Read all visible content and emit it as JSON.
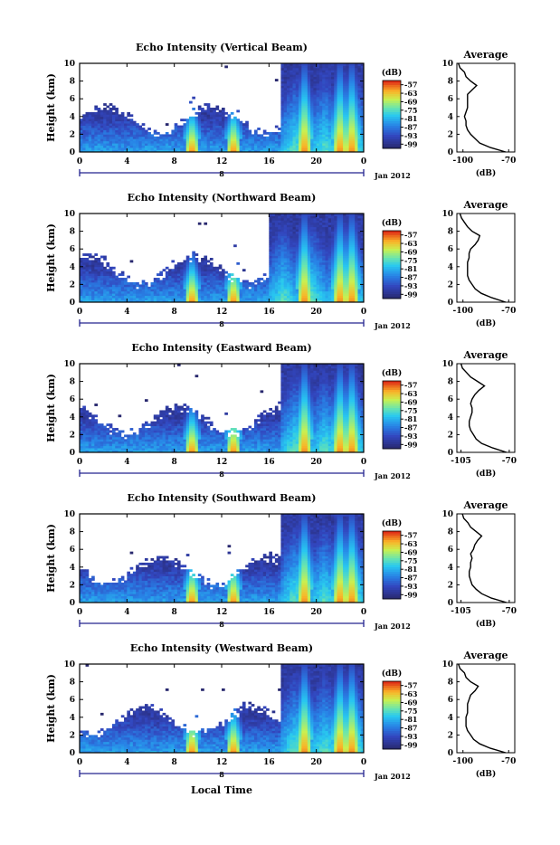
{
  "figure": {
    "xlabel": "Local Time",
    "date_label": "Jan 2012",
    "day_label": "8",
    "colorbar_unit": "(dB)",
    "avg_title": "Average",
    "avg_xlabel": "(dB)",
    "ylabel": "Height (km)"
  },
  "chart_data": [
    {
      "type": "heatmap",
      "title": "Echo Intensity (Vertical Beam)",
      "xlabel": "Local Time",
      "ylabel": "Height (km)",
      "x_ticks": [
        "0",
        "4",
        "8",
        "12",
        "16",
        "20",
        "0"
      ],
      "x_range": [
        0,
        24
      ],
      "y_ticks": [
        "0",
        "2",
        "4",
        "6",
        "8",
        "10"
      ],
      "y_range": [
        0,
        10
      ],
      "colorbar": {
        "label": "(dB)",
        "ticks": [
          "-57",
          "-63",
          "-69",
          "-75",
          "-81",
          "-87",
          "-93",
          "-99"
        ],
        "range": [
          -102,
          -54
        ]
      },
      "convective_plumes_hours": [
        9.5,
        13,
        19,
        22,
        23
      ],
      "deep_convection_start_hour": 17,
      "profile": {
        "title": "Average",
        "xlabel": "(dB)",
        "x_ticks": [
          "-100",
          "-70"
        ],
        "x_range": [
          -104,
          -66
        ],
        "heights": [
          0,
          0.5,
          1,
          1.5,
          2,
          2.5,
          3,
          3.5,
          4,
          4.5,
          5,
          5.5,
          6,
          6.5,
          7,
          7.5,
          8,
          8.5,
          9,
          9.5,
          10
        ],
        "values": [
          -72,
          -82,
          -89,
          -92,
          -95,
          -97,
          -98,
          -98,
          -99,
          -98,
          -97,
          -97,
          -97,
          -97,
          -94,
          -91,
          -95,
          -98,
          -99,
          -102,
          -103
        ]
      }
    },
    {
      "type": "heatmap",
      "title": "Echo Intensity (Northward Beam)",
      "xlabel": "Local Time",
      "ylabel": "Height (km)",
      "x_ticks": [
        "0",
        "4",
        "8",
        "12",
        "16",
        "20",
        "0"
      ],
      "x_range": [
        0,
        24
      ],
      "y_ticks": [
        "0",
        "2",
        "4",
        "6",
        "8",
        "10"
      ],
      "y_range": [
        0,
        10
      ],
      "colorbar": {
        "label": "(dB)",
        "ticks": [
          "-57",
          "-63",
          "-69",
          "-75",
          "-81",
          "-87",
          "-93",
          "-99"
        ],
        "range": [
          -102,
          -54
        ]
      },
      "convective_plumes_hours": [
        9.5,
        13,
        19,
        22,
        23
      ],
      "deep_convection_start_hour": 16,
      "profile": {
        "title": "Average",
        "xlabel": "(dB)",
        "x_ticks": [
          "-100",
          "-70"
        ],
        "x_range": [
          -104,
          -66
        ],
        "heights": [
          0,
          0.5,
          1,
          1.5,
          2,
          2.5,
          3,
          3.5,
          4,
          4.5,
          5,
          5.5,
          6,
          6.5,
          7,
          7.5,
          8,
          8.5,
          9,
          9.5,
          10
        ],
        "values": [
          -72,
          -81,
          -88,
          -92,
          -94,
          -96,
          -97,
          -97,
          -97,
          -97,
          -96,
          -96,
          -95,
          -92,
          -90,
          -89,
          -94,
          -97,
          -99,
          -101,
          -102
        ]
      }
    },
    {
      "type": "heatmap",
      "title": "Echo Intensity (Eastward Beam)",
      "xlabel": "Local Time",
      "ylabel": "Height (km)",
      "x_ticks": [
        "0",
        "4",
        "8",
        "12",
        "16",
        "20",
        "0"
      ],
      "x_range": [
        0,
        24
      ],
      "y_ticks": [
        "0",
        "2",
        "4",
        "6",
        "8",
        "10"
      ],
      "y_range": [
        0,
        10
      ],
      "colorbar": {
        "label": "(dB)",
        "ticks": [
          "-57",
          "-63",
          "-69",
          "-75",
          "-81",
          "-87",
          "-93",
          "-99"
        ],
        "range": [
          -102,
          -54
        ]
      },
      "convective_plumes_hours": [
        9.5,
        13,
        19,
        22,
        23
      ],
      "deep_convection_start_hour": 17,
      "profile": {
        "title": "Average",
        "xlabel": "(dB)",
        "x_ticks": [
          "-105",
          "-70"
        ],
        "x_range": [
          -108,
          -66
        ],
        "heights": [
          0,
          0.5,
          1,
          1.5,
          2,
          2.5,
          3,
          3.5,
          4,
          4.5,
          5,
          5.5,
          6,
          6.5,
          7,
          7.5,
          8,
          8.5,
          9,
          9.5,
          10
        ],
        "values": [
          -72,
          -82,
          -90,
          -94,
          -96,
          -98,
          -99,
          -99,
          -98,
          -97,
          -97,
          -98,
          -97,
          -95,
          -92,
          -88,
          -93,
          -98,
          -101,
          -104,
          -105
        ]
      }
    },
    {
      "type": "heatmap",
      "title": "Echo Intensity (Southward Beam)",
      "xlabel": "Local Time",
      "ylabel": "Height (km)",
      "x_ticks": [
        "0",
        "4",
        "8",
        "12",
        "16",
        "20",
        "0"
      ],
      "x_range": [
        0,
        24
      ],
      "y_ticks": [
        "0",
        "2",
        "4",
        "6",
        "8",
        "10"
      ],
      "y_range": [
        0,
        10
      ],
      "colorbar": {
        "label": "(dB)",
        "ticks": [
          "-57",
          "-63",
          "-69",
          "-75",
          "-81",
          "-87",
          "-93",
          "-99"
        ],
        "range": [
          -102,
          -54
        ]
      },
      "convective_plumes_hours": [
        9.5,
        13,
        19,
        22,
        23
      ],
      "deep_convection_start_hour": 17,
      "profile": {
        "title": "Average",
        "xlabel": "(dB)",
        "x_ticks": [
          "-105",
          "-70"
        ],
        "x_range": [
          -108,
          -66
        ],
        "heights": [
          0,
          0.5,
          1,
          1.5,
          2,
          2.5,
          3,
          3.5,
          4,
          4.5,
          5,
          5.5,
          6,
          6.5,
          7,
          7.5,
          8,
          8.5,
          9,
          9.5,
          10
        ],
        "values": [
          -72,
          -83,
          -90,
          -94,
          -97,
          -98,
          -99,
          -99,
          -98,
          -98,
          -97,
          -98,
          -96,
          -95,
          -93,
          -90,
          -94,
          -98,
          -100,
          -103,
          -104
        ]
      }
    },
    {
      "type": "heatmap",
      "title": "Echo Intensity (Westward Beam)",
      "xlabel": "Local Time",
      "ylabel": "Height (km)",
      "x_ticks": [
        "0",
        "4",
        "8",
        "12",
        "16",
        "20",
        "0"
      ],
      "x_range": [
        0,
        24
      ],
      "y_ticks": [
        "0",
        "2",
        "4",
        "6",
        "8",
        "10"
      ],
      "y_range": [
        0,
        10
      ],
      "colorbar": {
        "label": "(dB)",
        "ticks": [
          "-57",
          "-63",
          "-69",
          "-75",
          "-81",
          "-87",
          "-93",
          "-99"
        ],
        "range": [
          -102,
          -54
        ]
      },
      "convective_plumes_hours": [
        9.5,
        13,
        19,
        22,
        23
      ],
      "deep_convection_start_hour": 17,
      "profile": {
        "title": "Average",
        "xlabel": "(dB)",
        "x_ticks": [
          "-100",
          "-70"
        ],
        "x_range": [
          -104,
          -66
        ],
        "heights": [
          0,
          0.5,
          1,
          1.5,
          2,
          2.5,
          3,
          3.5,
          4,
          4.5,
          5,
          5.5,
          6,
          6.5,
          7,
          7.5,
          8,
          8.5,
          9,
          9.5,
          10
        ],
        "values": [
          -72,
          -82,
          -89,
          -93,
          -95,
          -97,
          -98,
          -98,
          -98,
          -97,
          -97,
          -97,
          -96,
          -95,
          -92,
          -90,
          -95,
          -98,
          -99,
          -102,
          -103
        ]
      }
    }
  ]
}
